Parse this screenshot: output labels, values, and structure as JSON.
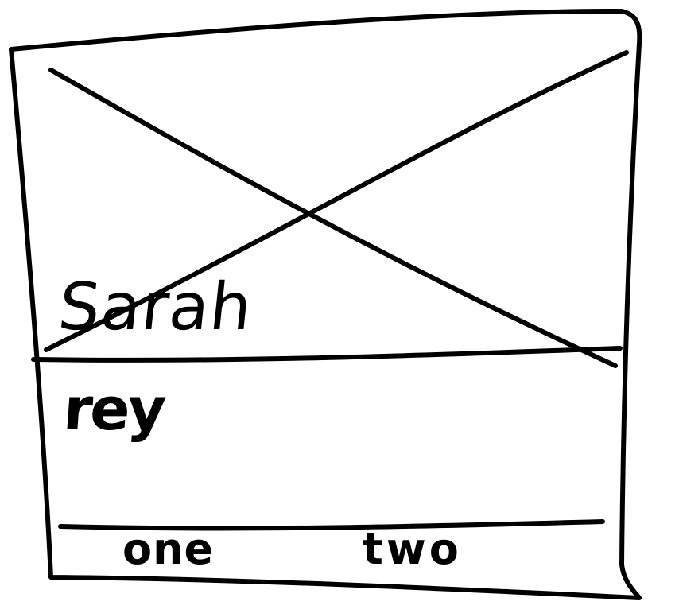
{
  "card": {
    "image_placeholder": "crossed-box-image-placeholder",
    "title": "Sarah",
    "body": "rey"
  },
  "tabs": [
    {
      "label": "one"
    },
    {
      "label": "two"
    }
  ],
  "colors": {
    "ink": "#000000",
    "paper": "#ffffff"
  }
}
